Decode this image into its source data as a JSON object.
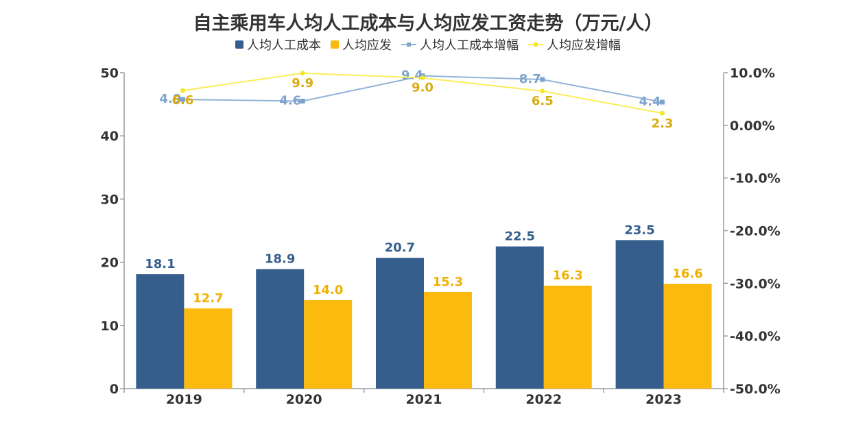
{
  "title": "自主乘用车人均人工成本与人均应发工资走势（万元/人）",
  "colors": {
    "cost": "#355E8D",
    "wage": "#FBBA0D",
    "cost_growth": "#92B3D8",
    "wage_growth": "#F8EE57"
  },
  "legend": [
    {
      "label": "人均人工成本",
      "kind": "bar",
      "color": "#355E8D"
    },
    {
      "label": "人均应发",
      "kind": "bar",
      "color": "#FBBA0D"
    },
    {
      "label": "人均人工成本增幅",
      "kind": "line",
      "color": "#92B3D8",
      "marker": "#7FA3CC"
    },
    {
      "label": "人均应发增幅",
      "kind": "line",
      "color": "#F8EE57",
      "marker": "#F4E62C"
    }
  ],
  "chart_data": {
    "type": "bar",
    "title": "自主乘用车人均人工成本与人均应发工资走势（万元/人）",
    "categories": [
      "2019",
      "2020",
      "2021",
      "2022",
      "2023"
    ],
    "series": [
      {
        "name": "人均人工成本",
        "type": "bar",
        "axis": "left",
        "values": [
          18.1,
          18.9,
          20.7,
          22.5,
          23.5
        ],
        "labels": [
          "18.1",
          "18.9",
          "20.7",
          "22.5",
          "23.5"
        ]
      },
      {
        "name": "人均应发",
        "type": "bar",
        "axis": "left",
        "values": [
          12.7,
          14.0,
          15.3,
          16.3,
          16.6
        ],
        "labels": [
          "12.7",
          "14.0",
          "15.3",
          "16.3",
          "16.6"
        ]
      },
      {
        "name": "人均人工成本增幅",
        "type": "line",
        "axis": "right",
        "values": [
          4.9,
          4.6,
          9.4,
          8.7,
          4.4
        ],
        "labels": [
          "4.9",
          "4.6",
          "9.4",
          "8.7",
          "4.4"
        ]
      },
      {
        "name": "人均应发增幅",
        "type": "line",
        "axis": "right",
        "values": [
          6.6,
          9.9,
          9.0,
          6.5,
          2.3
        ],
        "labels": [
          "6.6",
          "9.9",
          "9.0",
          "6.5",
          "2.3"
        ]
      }
    ],
    "y_left": {
      "min": 0,
      "max": 50,
      "ticks": [
        "0",
        "10",
        "20",
        "30",
        "40",
        "50"
      ]
    },
    "y_right": {
      "min": -50,
      "max": 10,
      "ticks": [
        "-50.0%",
        "-40.0%",
        "-30.0%",
        "-20.0%",
        "-10.0%",
        "0.00%",
        "10.0%"
      ]
    },
    "grid": false,
    "legend_position": "top"
  }
}
